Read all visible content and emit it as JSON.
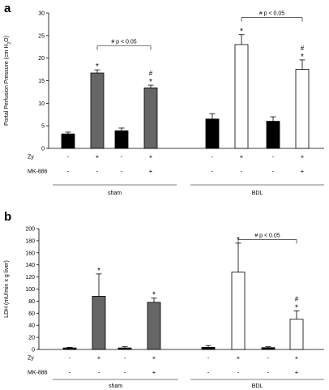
{
  "chart_data": [
    {
      "panel": "a",
      "type": "bar",
      "ylabel_main": "Portal Perfusion Pressure (cm H",
      "ylabel_sub": "2",
      "ylabel_tail": "O)",
      "ylim": [
        0,
        30
      ],
      "yticks": [
        "0",
        "5",
        "10",
        "15",
        "20",
        "25",
        "30"
      ],
      "row_labels": [
        "Zy",
        "MK-886"
      ],
      "groups": [
        "sham",
        "BDL"
      ],
      "bars": [
        {
          "group": "sham",
          "zy": "-",
          "mk": "-",
          "value": 3.2,
          "error": 0.4,
          "fill": "#000000",
          "star": "",
          "hash": ""
        },
        {
          "group": "sham",
          "zy": "+",
          "mk": "-",
          "value": 16.7,
          "error": 0.7,
          "fill": "#666666",
          "star": "*",
          "hash": ""
        },
        {
          "group": "sham",
          "zy": "-",
          "mk": "-",
          "value": 3.9,
          "error": 0.6,
          "fill": "#000000",
          "star": "",
          "hash": ""
        },
        {
          "group": "sham",
          "zy": "+",
          "mk": "+",
          "value": 13.4,
          "error": 0.6,
          "fill": "#666666",
          "star": "*",
          "hash": "#"
        },
        {
          "group": "BDL",
          "zy": "-",
          "mk": "-",
          "value": 6.5,
          "error": 1.2,
          "fill": "#000000",
          "star": "",
          "hash": ""
        },
        {
          "group": "BDL",
          "zy": "+",
          "mk": "-",
          "value": 23.0,
          "error": 2.2,
          "fill": "#ffffff",
          "star": "*",
          "hash": ""
        },
        {
          "group": "BDL",
          "zy": "-",
          "mk": "-",
          "value": 6.0,
          "error": 1.0,
          "fill": "#000000",
          "star": "",
          "hash": ""
        },
        {
          "group": "BDL",
          "zy": "+",
          "mk": "+",
          "value": 17.5,
          "error": 2.1,
          "fill": "#ffffff",
          "star": "*",
          "hash": "#"
        }
      ],
      "brackets": [
        {
          "from": 1,
          "to": 3,
          "label": "# p < 0.05"
        },
        {
          "from": 5,
          "to": 7,
          "label": "# p < 0.05"
        }
      ]
    },
    {
      "panel": "b",
      "type": "bar",
      "ylabel_main": "LDH (mU/min x g liver)",
      "ylim": [
        0,
        200
      ],
      "yticks": [
        "0",
        "20",
        "40",
        "60",
        "80",
        "100",
        "120",
        "140",
        "160",
        "180",
        "200"
      ],
      "row_labels": [
        "Zy",
        "MK-886"
      ],
      "groups": [
        "sham",
        "BDL"
      ],
      "bars": [
        {
          "group": "sham",
          "zy": "-",
          "mk": "-",
          "value": 2.5,
          "error": 1.0,
          "fill": "#000000",
          "star": "",
          "hash": ""
        },
        {
          "group": "sham",
          "zy": "+",
          "mk": "-",
          "value": 88,
          "error": 37,
          "fill": "#666666",
          "star": "*",
          "hash": ""
        },
        {
          "group": "sham",
          "zy": "-",
          "mk": "-",
          "value": 2.5,
          "error": 2.0,
          "fill": "#000000",
          "star": "",
          "hash": ""
        },
        {
          "group": "sham",
          "zy": "+",
          "mk": "+",
          "value": 78,
          "error": 7,
          "fill": "#666666",
          "star": "*",
          "hash": ""
        },
        {
          "group": "BDL",
          "zy": "-",
          "mk": "-",
          "value": 3.5,
          "error": 3.0,
          "fill": "#000000",
          "star": "",
          "hash": ""
        },
        {
          "group": "BDL",
          "zy": "+",
          "mk": "-",
          "value": 128,
          "error": 48,
          "fill": "#ffffff",
          "star": "*",
          "hash": ""
        },
        {
          "group": "BDL",
          "zy": "-",
          "mk": "-",
          "value": 3.0,
          "error": 1.5,
          "fill": "#000000",
          "star": "",
          "hash": ""
        },
        {
          "group": "BDL",
          "zy": "+",
          "mk": "+",
          "value": 50,
          "error": 14,
          "fill": "#ffffff",
          "star": "*",
          "hash": "#"
        }
      ],
      "brackets": [
        {
          "from": 5,
          "to": 7,
          "label": "# p < 0.05"
        }
      ]
    }
  ]
}
